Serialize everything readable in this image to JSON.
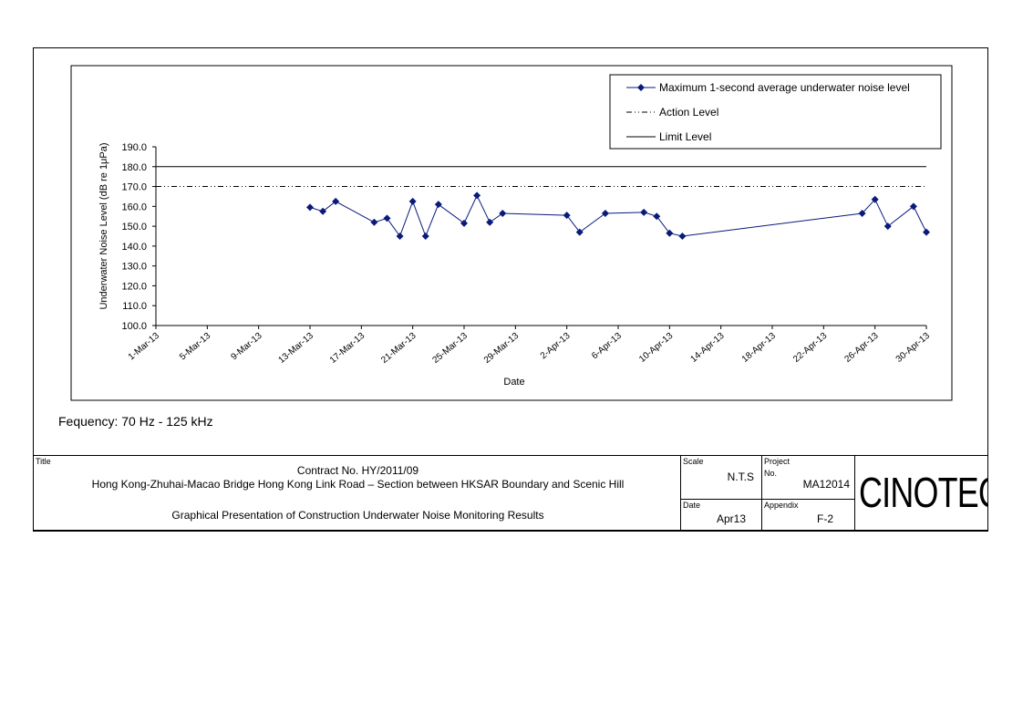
{
  "chart_data": {
    "type": "line",
    "xlabel": "Date",
    "ylabel": "Underwater Noise Level (dB re 1μPa)",
    "ylim": [
      100,
      190
    ],
    "yticks": [
      "100.0",
      "110.0",
      "120.0",
      "130.0",
      "140.0",
      "150.0",
      "160.0",
      "170.0",
      "180.0",
      "190.0"
    ],
    "xlim": [
      "2013-03-01",
      "2013-04-30"
    ],
    "xticks": [
      {
        "date": "2013-03-01",
        "label": "1-Mar-13"
      },
      {
        "date": "2013-03-05",
        "label": "5-Mar-13"
      },
      {
        "date": "2013-03-09",
        "label": "9-Mar-13"
      },
      {
        "date": "2013-03-13",
        "label": "13-Mar-13"
      },
      {
        "date": "2013-03-17",
        "label": "17-Mar-13"
      },
      {
        "date": "2013-03-21",
        "label": "21-Mar-13"
      },
      {
        "date": "2013-03-25",
        "label": "25-Mar-13"
      },
      {
        "date": "2013-03-29",
        "label": "29-Mar-13"
      },
      {
        "date": "2013-04-02",
        "label": "2-Apr-13"
      },
      {
        "date": "2013-04-06",
        "label": "6-Apr-13"
      },
      {
        "date": "2013-04-10",
        "label": "10-Apr-13"
      },
      {
        "date": "2013-04-14",
        "label": "14-Apr-13"
      },
      {
        "date": "2013-04-18",
        "label": "18-Apr-13"
      },
      {
        "date": "2013-04-22",
        "label": "22-Apr-13"
      },
      {
        "date": "2013-04-26",
        "label": "26-Apr-13"
      },
      {
        "date": "2013-04-30",
        "label": "30-Apr-13"
      }
    ],
    "series": [
      {
        "name": "Maximum 1-second average underwater noise level",
        "color": "#0a1a7a",
        "points": [
          {
            "x": "2013-03-13",
            "y": 159.5
          },
          {
            "x": "2013-03-14",
            "y": 157.5
          },
          {
            "x": "2013-03-15",
            "y": 162.5
          },
          {
            "x": "2013-03-18",
            "y": 152.0
          },
          {
            "x": "2013-03-19",
            "y": 154.0
          },
          {
            "x": "2013-03-20",
            "y": 145.0
          },
          {
            "x": "2013-03-21",
            "y": 162.5
          },
          {
            "x": "2013-03-22",
            "y": 145.0
          },
          {
            "x": "2013-03-23",
            "y": 161.0
          },
          {
            "x": "2013-03-25",
            "y": 151.5
          },
          {
            "x": "2013-03-26",
            "y": 165.5
          },
          {
            "x": "2013-03-27",
            "y": 152.0
          },
          {
            "x": "2013-03-28",
            "y": 156.5
          },
          {
            "x": "2013-04-02",
            "y": 155.5
          },
          {
            "x": "2013-04-03",
            "y": 147.0
          },
          {
            "x": "2013-04-05",
            "y": 156.5
          },
          {
            "x": "2013-04-08",
            "y": 157.0
          },
          {
            "x": "2013-04-09",
            "y": 155.0
          },
          {
            "x": "2013-04-10",
            "y": 146.5
          },
          {
            "x": "2013-04-11",
            "y": 145.0
          },
          {
            "x": "2013-04-25",
            "y": 156.5
          },
          {
            "x": "2013-04-26",
            "y": 163.5
          },
          {
            "x": "2013-04-27",
            "y": 150.0
          },
          {
            "x": "2013-04-29",
            "y": 160.0
          },
          {
            "x": "2013-04-30",
            "y": 147.0
          }
        ]
      }
    ],
    "reference_lines": [
      {
        "name": "Action Level",
        "y": 170,
        "style": "dash-dot-dot"
      },
      {
        "name": "Limit Level",
        "y": 180,
        "style": "solid"
      }
    ],
    "legend_position": "top-right",
    "grid": false
  },
  "footer": {
    "frequency": "Fequency: 70 Hz - 125 kHz"
  },
  "title_block": {
    "title_label": "Title",
    "contract": "Contract No. HY/2011/09",
    "project_name": "Hong Kong-Zhuhai-Macao Bridge Hong Kong Link Road – Section between HKSAR Boundary and Scenic Hill",
    "drawing_title": "Graphical Presentation of Construction Underwater Noise Monitoring Results",
    "scale_label": "Scale",
    "scale_value": "N.T.S",
    "project_label": "Project",
    "project_no_label": "No.",
    "project_value": "MA12014",
    "date_label": "Date",
    "date_value": "Apr13",
    "appendix_label": "Appendix",
    "appendix_value": "F-2",
    "logo_text": "CINOTECH"
  }
}
